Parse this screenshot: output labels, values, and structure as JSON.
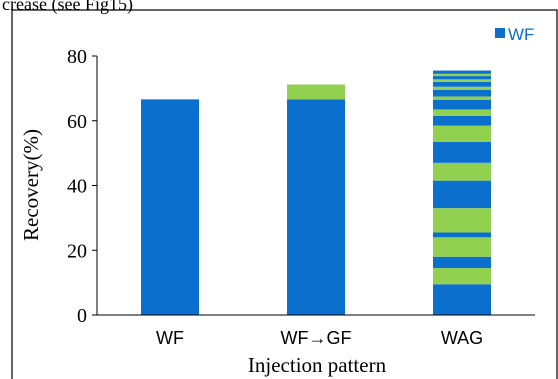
{
  "page_caption": "crease (see Fig15)",
  "chart_data": {
    "type": "bar",
    "stacked": true,
    "ylabel": "Recovery(%)",
    "xlabel": "Injection pattern",
    "ylim": [
      0,
      80
    ],
    "yticks": [
      "0",
      "20",
      "40",
      "60",
      "80"
    ],
    "legend": {
      "position": "top-right",
      "entries": [
        "WF"
      ]
    },
    "colors": {
      "WF": "#0a6fcd",
      "GF": "#92d050"
    },
    "categories": [
      "WF",
      "WF→GF",
      "WAG"
    ],
    "bars": [
      {
        "category": "WF",
        "segments": [
          {
            "phase": "WF",
            "from": 0,
            "to": 66.6
          }
        ]
      },
      {
        "category": "WF→GF",
        "segments": [
          {
            "phase": "WF",
            "from": 0,
            "to": 66.6
          },
          {
            "phase": "GF",
            "from": 66.6,
            "to": 71.2
          }
        ]
      },
      {
        "category": "WAG",
        "segments": [
          {
            "phase": "WF",
            "from": 0,
            "to": 9.5
          },
          {
            "phase": "GF",
            "from": 9.5,
            "to": 14.5
          },
          {
            "phase": "WF",
            "from": 14.5,
            "to": 18.0
          },
          {
            "phase": "GF",
            "from": 18.0,
            "to": 24.0
          },
          {
            "phase": "WF",
            "from": 24.0,
            "to": 25.5
          },
          {
            "phase": "GF",
            "from": 25.5,
            "to": 33.0
          },
          {
            "phase": "WF",
            "from": 33.0,
            "to": 41.5
          },
          {
            "phase": "GF",
            "from": 41.5,
            "to": 47.0
          },
          {
            "phase": "WF",
            "from": 47.0,
            "to": 53.5
          },
          {
            "phase": "GF",
            "from": 53.5,
            "to": 58.5
          },
          {
            "phase": "WF",
            "from": 58.5,
            "to": 61.5
          },
          {
            "phase": "GF",
            "from": 61.5,
            "to": 63.5
          },
          {
            "phase": "WF",
            "from": 63.5,
            "to": 66.5
          },
          {
            "phase": "GF",
            "from": 66.5,
            "to": 67.5
          },
          {
            "phase": "WF",
            "from": 67.5,
            "to": 69.5
          },
          {
            "phase": "GF",
            "from": 69.5,
            "to": 70.5
          },
          {
            "phase": "WF",
            "from": 70.5,
            "to": 72.0
          },
          {
            "phase": "GF",
            "from": 72.0,
            "to": 72.8
          },
          {
            "phase": "WF",
            "from": 72.8,
            "to": 73.8
          },
          {
            "phase": "GF",
            "from": 73.8,
            "to": 74.5
          },
          {
            "phase": "WF",
            "from": 74.5,
            "to": 75.5
          }
        ]
      }
    ]
  }
}
